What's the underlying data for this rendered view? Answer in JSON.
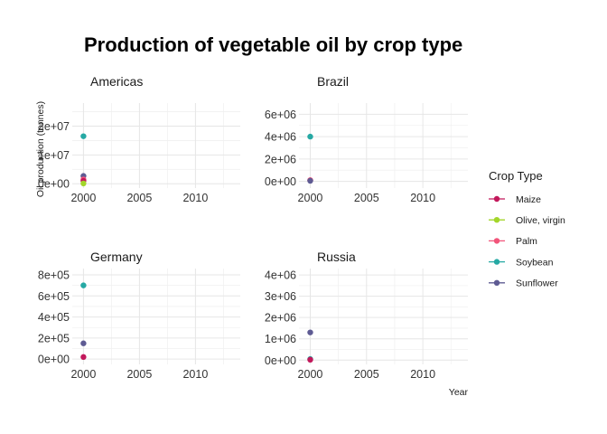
{
  "chart_data": {
    "type": "scatter",
    "title": "Production of vegetable oil by crop type",
    "xlabel": "Year",
    "ylabel": "Oil production (tonnes)",
    "legend": {
      "title": "Crop Type",
      "position": "right",
      "entries": [
        {
          "name": "Maize",
          "color": "#c2185b"
        },
        {
          "name": "Olive, virgin",
          "color": "#a3d62a"
        },
        {
          "name": "Palm",
          "color": "#f2547a"
        },
        {
          "name": "Soybean",
          "color": "#26a9a4"
        },
        {
          "name": "Sunflower",
          "color": "#5e5b93"
        }
      ]
    },
    "grid": true,
    "xlim": [
      1999,
      2014
    ],
    "x_ticks": [
      2000,
      2005,
      2010
    ],
    "panels": [
      {
        "name": "Americas",
        "ylim": [
          -1500000,
          28000000
        ],
        "y_ticks": [
          0,
          10000000,
          20000000
        ],
        "y_tick_labels": [
          "0e+00",
          "1e+07",
          "2e+07"
        ],
        "points": [
          {
            "series": "Soybean",
            "x": 2000,
            "y": 16500000
          },
          {
            "series": "Sunflower",
            "x": 2000,
            "y": 2700000
          },
          {
            "series": "Palm",
            "x": 2000,
            "y": 1500000
          },
          {
            "series": "Maize",
            "x": 2000,
            "y": 1000000
          },
          {
            "series": "Olive, virgin",
            "x": 2000,
            "y": 100000
          }
        ]
      },
      {
        "name": "Brazil",
        "ylim": [
          -600000,
          7000000
        ],
        "y_ticks": [
          0,
          2000000,
          4000000,
          6000000
        ],
        "y_tick_labels": [
          "0e+00",
          "2e+06",
          "4e+06",
          "6e+06"
        ],
        "points": [
          {
            "series": "Soybean",
            "x": 2000,
            "y": 4000000
          },
          {
            "series": "Maize",
            "x": 2000,
            "y": 100000
          },
          {
            "series": "Palm",
            "x": 2000,
            "y": 90000
          },
          {
            "series": "Sunflower",
            "x": 2000,
            "y": 50000
          }
        ]
      },
      {
        "name": "Germany",
        "ylim": [
          -50000,
          860000
        ],
        "y_ticks": [
          0,
          200000,
          400000,
          600000,
          800000
        ],
        "y_tick_labels": [
          "0e+00",
          "2e+05",
          "4e+05",
          "6e+05",
          "8e+05"
        ],
        "points": [
          {
            "series": "Soybean",
            "x": 2000,
            "y": 700000
          },
          {
            "series": "Sunflower",
            "x": 2000,
            "y": 150000
          },
          {
            "series": "Maize",
            "x": 2000,
            "y": 20000
          }
        ]
      },
      {
        "name": "Russia",
        "ylim": [
          -200000,
          4300000
        ],
        "y_ticks": [
          0,
          1000000,
          2000000,
          3000000,
          4000000
        ],
        "y_tick_labels": [
          "0e+00",
          "1e+06",
          "2e+06",
          "3e+06",
          "4e+06"
        ],
        "points": [
          {
            "series": "Sunflower",
            "x": 2000,
            "y": 1300000
          },
          {
            "series": "Soybean",
            "x": 2000,
            "y": 50000
          },
          {
            "series": "Maize",
            "x": 2000,
            "y": 20000
          }
        ]
      }
    ]
  }
}
